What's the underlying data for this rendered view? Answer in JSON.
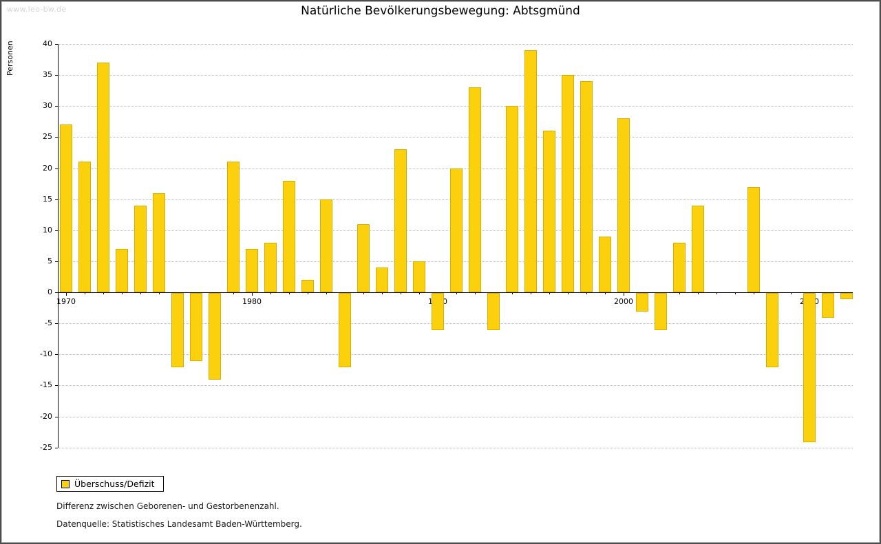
{
  "watermark": "www.leo-bw.de",
  "title": "Natürliche Bevölkerungsbewegung: Abtsgmünd",
  "ylabel": "Personen",
  "legend": {
    "label": "Überschuss/Defizit"
  },
  "footnotes": [
    "Differenz zwischen Geborenen- und Gestorbenenzahl.",
    "Datenquelle: Statistisches Landesamt Baden-Württemberg."
  ],
  "colors": {
    "bar": "#FBD10E",
    "bar_border": "#D9AC00",
    "grid": "#B8B8B8",
    "axis": "#000000"
  },
  "chart_data": {
    "type": "bar",
    "title": "Natürliche Bevölkerungsbewegung: Abtsgmünd",
    "series_name": "Überschuss/Defizit",
    "xlabel": "",
    "ylabel": "Personen",
    "ylim": [
      -25,
      40
    ],
    "yticks": [
      -25,
      -20,
      -15,
      -10,
      -5,
      0,
      5,
      10,
      15,
      20,
      25,
      30,
      35,
      40
    ],
    "xticks": [
      1970,
      1980,
      1990,
      2000,
      2010
    ],
    "grid": "horizontal-dotted",
    "legend_position": "bottom-left",
    "x": [
      1970,
      1971,
      1972,
      1973,
      1974,
      1975,
      1976,
      1977,
      1978,
      1979,
      1980,
      1981,
      1982,
      1983,
      1984,
      1985,
      1986,
      1987,
      1988,
      1989,
      1990,
      1991,
      1992,
      1993,
      1994,
      1995,
      1996,
      1997,
      1998,
      1999,
      2000,
      2001,
      2002,
      2003,
      2004,
      2005,
      2006,
      2007,
      2008,
      2009,
      2010,
      2011,
      2012
    ],
    "values": [
      27,
      21,
      37,
      7,
      14,
      16,
      -12,
      -11,
      -14,
      21,
      7,
      8,
      18,
      2,
      15,
      -12,
      11,
      4,
      23,
      5,
      -6,
      20,
      33,
      -6,
      30,
      39,
      26,
      35,
      34,
      9,
      28,
      -3,
      -6,
      8,
      14,
      0,
      0,
      17,
      -12,
      0,
      -24,
      -4,
      -1
    ]
  }
}
